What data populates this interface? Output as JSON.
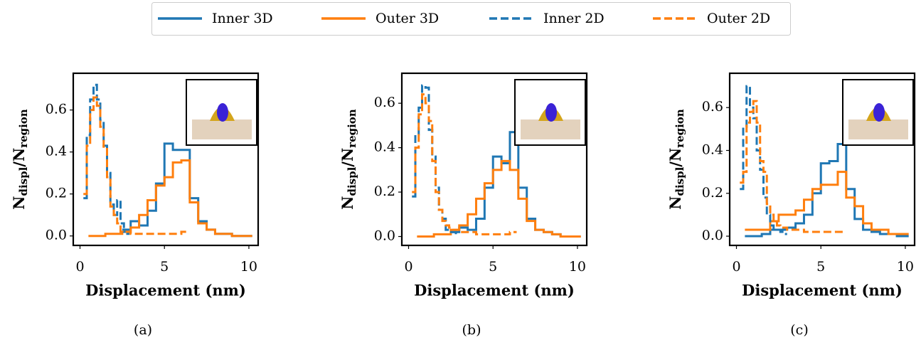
{
  "chart_data": [
    {
      "type": "step",
      "xlabel": "Displacement (nm)",
      "ylabel_parts": [
        "N",
        "displ",
        "/N",
        "region"
      ],
      "caption": "(a)",
      "xlim": [
        -0.4,
        10.55
      ],
      "ylim": [
        -0.045,
        0.775
      ],
      "xticks": [
        0,
        5,
        10
      ],
      "yticks": [
        {
          "value": 0,
          "label": "0.0"
        },
        0.2,
        0.4,
        0.6
      ],
      "series": [
        {
          "name": "Inner 3D",
          "color": "#1f77b4",
          "dash": false,
          "x": [
            2.5,
            3,
            3.5,
            4,
            4.5,
            5,
            5.5,
            6,
            6.5,
            7,
            7.5,
            8,
            8.5,
            9,
            9.5,
            10.2
          ],
          "values": [
            0.03,
            0.07,
            0.05,
            0.12,
            0.25,
            0.44,
            0.41,
            0.41,
            0.18,
            0.07,
            0.03,
            0.01,
            0.01,
            0,
            0,
            0
          ]
        },
        {
          "name": "Outer 3D",
          "color": "#ff7f0e",
          "dash": false,
          "x": [
            0.5,
            1,
            1.5,
            2,
            2.5,
            3,
            3.5,
            4,
            4.5,
            5,
            5.5,
            6,
            6.5,
            7,
            7.5,
            8,
            8.5,
            9,
            9.5,
            10.2
          ],
          "values": [
            0,
            0,
            0.01,
            0.01,
            0.02,
            0.04,
            0.1,
            0.17,
            0.24,
            0.28,
            0.35,
            0.36,
            0.16,
            0.06,
            0.03,
            0.01,
            0.01,
            0,
            0,
            0
          ]
        },
        {
          "name": "Inner 2D",
          "color": "#1f77b4",
          "dash": true,
          "x": [
            0.2,
            0.4,
            0.6,
            0.8,
            1,
            1.2,
            1.4,
            1.6,
            1.8,
            2,
            2.2,
            2.4,
            2.6,
            2.8,
            3
          ],
          "values": [
            0.18,
            0.48,
            0.65,
            0.72,
            0.65,
            0.55,
            0.43,
            0.3,
            0.15,
            0.1,
            0.17,
            0.06,
            0.02,
            0.01,
            0.01
          ]
        },
        {
          "name": "Outer 2D",
          "color": "#ff7f0e",
          "dash": true,
          "x": [
            0.2,
            0.4,
            0.6,
            0.8,
            1,
            1.2,
            1.4,
            1.6,
            1.8,
            2,
            2.2,
            2.4,
            2.6,
            3,
            4,
            5,
            6,
            6.4
          ],
          "values": [
            0.2,
            0.43,
            0.6,
            0.66,
            0.62,
            0.52,
            0.42,
            0.28,
            0.14,
            0.1,
            0.06,
            0.02,
            0.02,
            0.01,
            0.01,
            0.01,
            0.02,
            0.02
          ]
        }
      ]
    },
    {
      "type": "step",
      "xlabel": "Displacement (nm)",
      "ylabel_parts": [
        "N",
        "displ",
        "/N",
        "region"
      ],
      "caption": "(b)",
      "xlim": [
        -0.4,
        10.55
      ],
      "ylim": [
        -0.04,
        0.735
      ],
      "xticks": [
        0,
        5,
        10
      ],
      "yticks": [
        {
          "value": 0,
          "label": "0.0"
        },
        0.2,
        0.4,
        0.6
      ],
      "series": [
        {
          "color": "#1f77b4",
          "dash": false,
          "x": [
            2.5,
            3,
            3.5,
            4,
            4.5,
            5,
            5.5,
            6,
            6.5,
            7,
            7.5,
            8,
            8.5,
            9,
            9.5,
            10.2
          ],
          "values": [
            0.02,
            0.04,
            0.03,
            0.08,
            0.22,
            0.36,
            0.33,
            0.47,
            0.22,
            0.08,
            0.03,
            0.02,
            0.01,
            0,
            0,
            0
          ]
        },
        {
          "color": "#ff7f0e",
          "dash": false,
          "x": [
            0.5,
            1,
            1.5,
            2,
            2.5,
            3,
            3.5,
            4,
            4.5,
            5,
            5.5,
            6,
            6.5,
            7,
            7.5,
            8,
            8.5,
            9,
            9.5,
            10.2
          ],
          "values": [
            0,
            0,
            0.01,
            0.01,
            0.03,
            0.05,
            0.1,
            0.17,
            0.24,
            0.3,
            0.34,
            0.3,
            0.17,
            0.07,
            0.03,
            0.02,
            0.01,
            0,
            0,
            0
          ]
        },
        {
          "color": "#1f77b4",
          "dash": true,
          "x": [
            0.2,
            0.4,
            0.6,
            0.8,
            1,
            1.2,
            1.4,
            1.6,
            1.8,
            2,
            2.2,
            2.4,
            2.6,
            2.8,
            3
          ],
          "values": [
            0.18,
            0.46,
            0.58,
            0.68,
            0.67,
            0.48,
            0.36,
            0.22,
            0.12,
            0.08,
            0.03,
            0.02,
            0.02,
            0.01,
            0.01
          ]
        },
        {
          "color": "#ff7f0e",
          "dash": true,
          "x": [
            0.2,
            0.4,
            0.6,
            0.8,
            1,
            1.2,
            1.4,
            1.6,
            1.8,
            2,
            2.2,
            2.4,
            2.6,
            3,
            4,
            5,
            6,
            6.4
          ],
          "values": [
            0.2,
            0.4,
            0.55,
            0.64,
            0.6,
            0.52,
            0.34,
            0.2,
            0.12,
            0.07,
            0.05,
            0.04,
            0.03,
            0.02,
            0.01,
            0.01,
            0.02,
            0.02
          ]
        }
      ]
    },
    {
      "type": "step",
      "xlabel": "Displacement (nm)",
      "ylabel_parts": [
        "N",
        "displ",
        "/N",
        "region"
      ],
      "caption": "(c)",
      "xlim": [
        -0.4,
        10.55
      ],
      "ylim": [
        -0.043,
        0.76
      ],
      "xticks": [
        0,
        5,
        10
      ],
      "yticks": [
        {
          "value": 0,
          "label": "0.0"
        },
        0.2,
        0.4,
        0.6
      ],
      "series": [
        {
          "color": "#1f77b4",
          "dash": false,
          "x": [
            0.5,
            1,
            1.5,
            2,
            2.5,
            3,
            3.5,
            4,
            4.5,
            5,
            5.5,
            6,
            6.5,
            7,
            7.5,
            8,
            8.5,
            9,
            9.5,
            10.2
          ],
          "values": [
            0,
            0,
            0.01,
            0.03,
            0.03,
            0.04,
            0.06,
            0.1,
            0.2,
            0.34,
            0.35,
            0.43,
            0.22,
            0.08,
            0.03,
            0.02,
            0.01,
            0.01,
            0,
            0
          ]
        },
        {
          "color": "#ff7f0e",
          "dash": false,
          "x": [
            0.5,
            1,
            1.5,
            2,
            2.5,
            3,
            3.5,
            4,
            4.5,
            5,
            5.5,
            6,
            6.5,
            7,
            7.5,
            8,
            8.5,
            9,
            9.5,
            10.2
          ],
          "values": [
            0.03,
            0.03,
            0.03,
            0.07,
            0.1,
            0.1,
            0.12,
            0.17,
            0.22,
            0.24,
            0.24,
            0.3,
            0.18,
            0.14,
            0.06,
            0.03,
            0.03,
            0.01,
            0.01,
            0.01
          ]
        },
        {
          "color": "#1f77b4",
          "dash": true,
          "x": [
            0.2,
            0.4,
            0.6,
            0.8,
            1,
            1.2,
            1.4,
            1.6,
            1.8,
            2,
            2.2,
            2.4,
            2.6,
            2.8,
            3
          ],
          "values": [
            0.22,
            0.51,
            0.7,
            0.6,
            0.55,
            0.4,
            0.31,
            0.18,
            0.1,
            0.05,
            0.03,
            0.03,
            0.02,
            0.01,
            0.01
          ]
        },
        {
          "color": "#ff7f0e",
          "dash": true,
          "x": [
            0.2,
            0.4,
            0.6,
            0.8,
            1,
            1.2,
            1.4,
            1.6,
            1.8,
            2,
            2.2,
            2.4,
            2.6,
            3,
            4,
            5,
            6,
            6.4
          ],
          "values": [
            0.25,
            0.3,
            0.53,
            0.58,
            0.63,
            0.53,
            0.35,
            0.3,
            0.15,
            0.1,
            0.07,
            0.05,
            0.04,
            0.03,
            0.02,
            0.02,
            0.02,
            0.02
          ]
        }
      ]
    }
  ]
}
